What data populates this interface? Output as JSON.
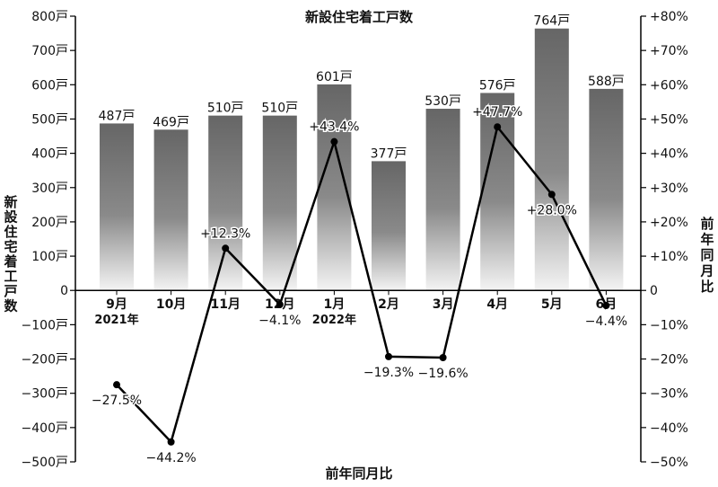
{
  "chart_data": {
    "type": "bar+line",
    "title": "新設住宅着工戸数",
    "xlabel": "前年同月比",
    "ylabel_left": "新設住宅着工戸数",
    "ylabel_right": "前年同月比",
    "categories": [
      {
        "month": "9月",
        "year": "2021年"
      },
      {
        "month": "10月",
        "year": ""
      },
      {
        "month": "11月",
        "year": ""
      },
      {
        "month": "12月",
        "year": ""
      },
      {
        "month": "1月",
        "year": "2022年"
      },
      {
        "month": "2月",
        "year": ""
      },
      {
        "month": "3月",
        "year": ""
      },
      {
        "month": "4月",
        "year": ""
      },
      {
        "month": "5月",
        "year": ""
      },
      {
        "month": "6月",
        "year": ""
      }
    ],
    "bars": {
      "values": [
        487,
        469,
        510,
        510,
        601,
        377,
        530,
        576,
        764,
        588
      ],
      "labels": [
        "487戸",
        "469戸",
        "510戸",
        "510戸",
        "601戸",
        "377戸",
        "530戸",
        "576戸",
        "764戸",
        "588戸"
      ]
    },
    "line": {
      "values": [
        -27.5,
        -44.2,
        12.3,
        -4.1,
        43.4,
        -19.3,
        -19.6,
        47.7,
        28.0,
        -4.4
      ],
      "labels": [
        "−27.5%",
        "−44.2%",
        "+12.3%",
        "−4.1%",
        "+43.4%",
        "−19.3%",
        "−19.6%",
        "+47.7%",
        "+28.0%",
        "−4.4%"
      ]
    },
    "left_axis": {
      "ylim": [
        -500,
        800
      ],
      "ticks": [
        800,
        700,
        600,
        500,
        400,
        300,
        200,
        100,
        0,
        -100,
        -200,
        -300,
        -400,
        -500
      ],
      "tick_labels": [
        "800戸",
        "700戸",
        "600戸",
        "500戸",
        "400戸",
        "300戸",
        "200戸",
        "100戸",
        "0",
        "−100戸",
        "−200戸",
        "−300戸",
        "−400戸",
        "−500戸"
      ]
    },
    "right_axis": {
      "ylim": [
        -50,
        80
      ],
      "ticks": [
        80,
        70,
        60,
        50,
        40,
        30,
        20,
        10,
        0,
        -10,
        -20,
        -30,
        -40,
        -50
      ],
      "tick_labels": [
        "+80%",
        "+70%",
        "+60%",
        "+50%",
        "+40%",
        "+30%",
        "+20%",
        "+10%",
        "0",
        "−10%",
        "−20%",
        "−30%",
        "−40%",
        "−50%"
      ]
    },
    "grid": false
  }
}
